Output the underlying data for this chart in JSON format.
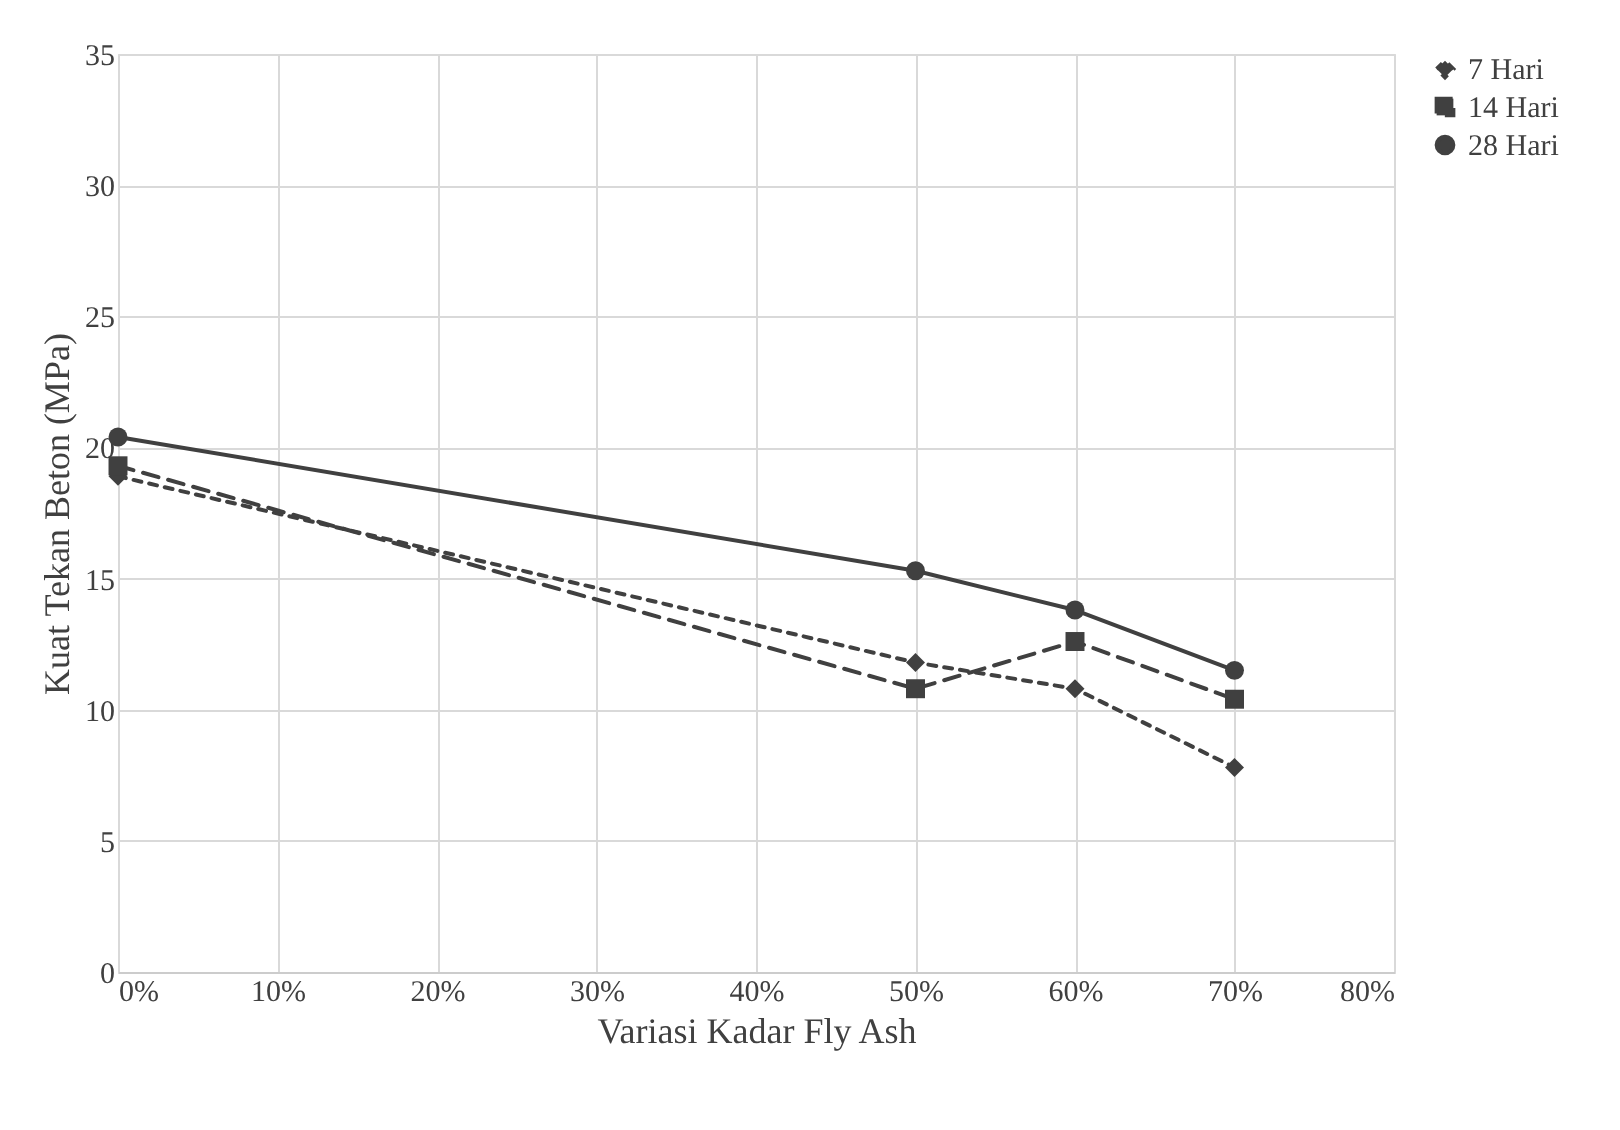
{
  "chart_data": {
    "type": "line",
    "xlabel": "Variasi Kadar Fly Ash",
    "ylabel": "Kuat Tekan Beton (MPa)",
    "x": [
      0,
      50,
      60,
      70
    ],
    "series": [
      {
        "name": "7 Hari",
        "color": "#404040",
        "values": [
          18.9,
          11.8,
          10.8,
          7.8
        ],
        "line_style": "dotted",
        "marker": "diamond"
      },
      {
        "name": "14 Hari",
        "color": "#404040",
        "values": [
          19.3,
          10.8,
          12.6,
          10.4
        ],
        "line_style": "dashed",
        "marker": "square"
      },
      {
        "name": "28 Hari",
        "color": "#404040",
        "values": [
          20.4,
          15.3,
          13.8,
          11.5
        ],
        "line_style": "solid",
        "marker": "circle"
      }
    ],
    "xlim": [
      0,
      80
    ],
    "xticks": [
      {
        "value": 0,
        "label": "0%"
      },
      {
        "value": 10,
        "label": "10%"
      },
      {
        "value": 20,
        "label": "20%"
      },
      {
        "value": 30,
        "label": "30%"
      },
      {
        "value": 40,
        "label": "40%"
      },
      {
        "value": 50,
        "label": "50%"
      },
      {
        "value": 60,
        "label": "60%"
      },
      {
        "value": 70,
        "label": "70%"
      },
      {
        "value": 80,
        "label": "80%"
      }
    ],
    "ylim": [
      0,
      35
    ],
    "yticks": [
      0,
      5,
      10,
      15,
      20,
      25,
      30,
      35
    ],
    "grid": true,
    "legend": "right"
  }
}
